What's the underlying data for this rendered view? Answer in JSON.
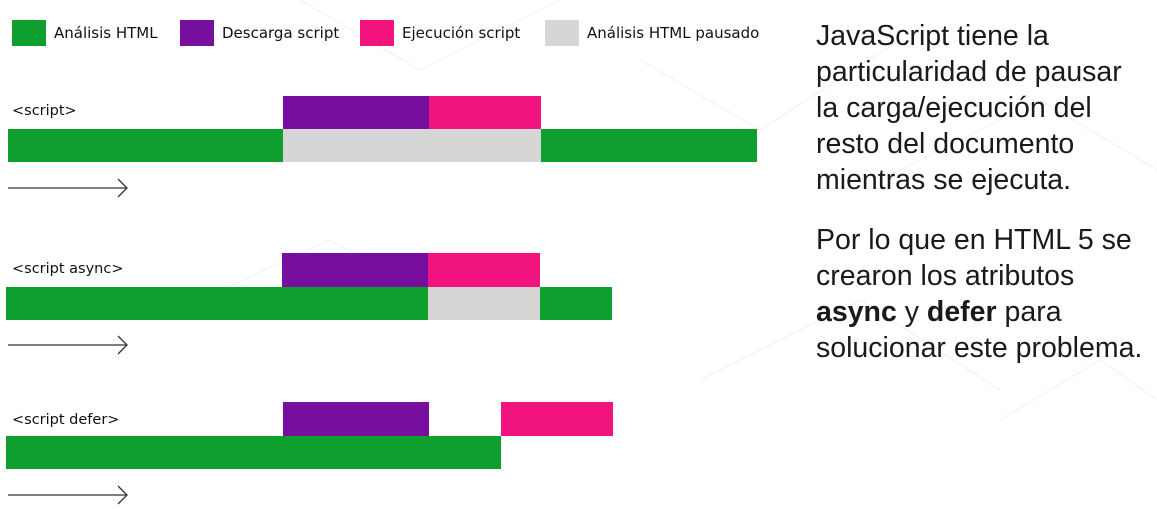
{
  "colors": {
    "parse": "#0e9f2e",
    "download": "#760e9e",
    "execute": "#f1147f",
    "paused": "#d6d6d6"
  },
  "legend": [
    {
      "label": "Análisis HTML",
      "color_key": "parse"
    },
    {
      "label": "Descarga script",
      "color_key": "download"
    },
    {
      "label": "Ejecución script",
      "color_key": "execute"
    },
    {
      "label": "Análisis HTML pausado",
      "color_key": "paused"
    }
  ],
  "rows": [
    {
      "label": "<script>"
    },
    {
      "label": "<script async>"
    },
    {
      "label": "<script defer>"
    }
  ],
  "explanation": {
    "p1": "JavaScript tiene la particularidad de pausar la carga/ejecución del resto del documento mientras se ejecuta.",
    "p2_before": "Por lo que en HTML 5 se crearon los atributos ",
    "p2_async": "async",
    "p2_middle": " y ",
    "p2_defer": "defer",
    "p2_after": " para solucionar este problema."
  }
}
